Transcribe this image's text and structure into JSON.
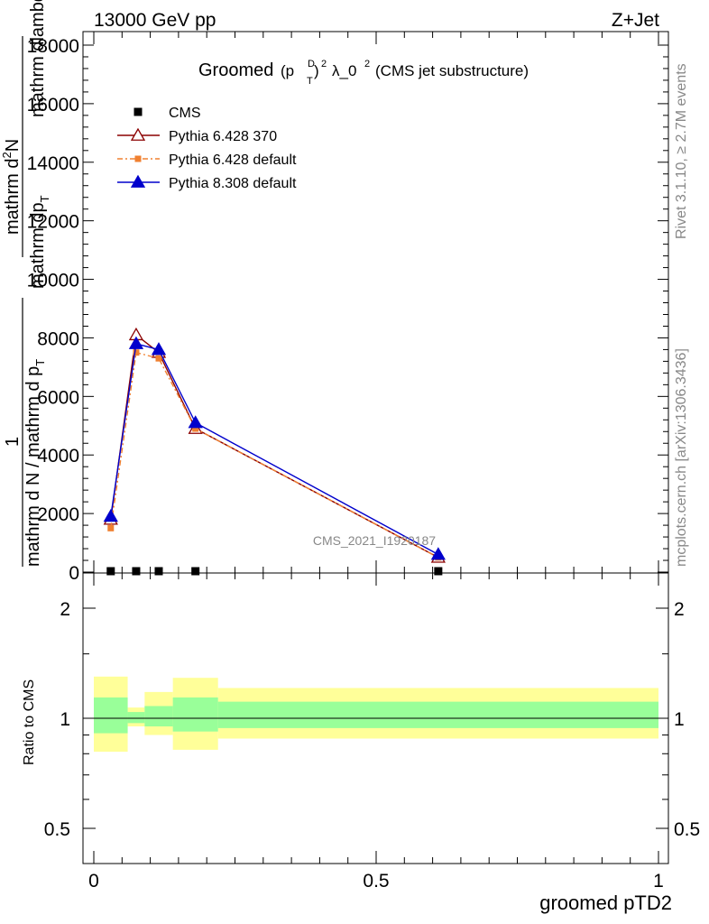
{
  "header": {
    "left": "13000 GeV pp",
    "right": "Z+Jet"
  },
  "side_text": {
    "rivet": "Rivet 3.1.10, ≥ 2.7M events",
    "mcplots": "mcplots.cern.ch [arXiv:1306.3436]"
  },
  "chart_data": [
    {
      "type": "line",
      "title_main": "Groomed",
      "title_rest": "λ_0",
      "title_paren": "(CMS jet substructure)",
      "title_sup": "2",
      "title_p": "(p",
      "title_pD": "D",
      "title_pT": "T",
      "ylabel_lines": [
        "mathrm d²N",
        "mathrm d p_T mathrm d lambda",
        "1",
        "mathrm d N / mathrm d p_T"
      ],
      "ylabel": {
        "top": "mathrm d",
        "top_sup": "2",
        "top_n": "N",
        "lambda": "mathrm dlambda",
        "pt1": "mathrm dp",
        "pt1_sub": "T",
        "one": "1",
        "denom": "mathrm d N / mathrm d p",
        "denom_sub": "T"
      },
      "xlabel": "groomed pTD2",
      "xlim": [
        0,
        1
      ],
      "ylim": [
        0,
        18000
      ],
      "yticks": [
        0,
        2000,
        4000,
        6000,
        8000,
        10000,
        12000,
        14000,
        16000,
        18000
      ],
      "ytick_labels": [
        "0",
        "2000",
        "4000",
        "6000",
        "8000",
        "10000",
        "12000",
        "14000",
        "16000",
        "18000"
      ],
      "watermark": "CMS_2021_I1920187",
      "legend_position": "top-left",
      "series": [
        {
          "name": "CMS",
          "marker": "square",
          "color": "#000000",
          "x": [
            0.03,
            0.075,
            0.115,
            0.18,
            0.61
          ],
          "y": [
            0,
            0,
            0,
            0,
            0
          ]
        },
        {
          "name": "Pythia 6.428 370",
          "marker": "open-triangle",
          "color": "#8b0000",
          "dash": "",
          "x": [
            0.03,
            0.075,
            0.115,
            0.18,
            0.61
          ],
          "y": [
            1800,
            8100,
            7500,
            4900,
            500
          ]
        },
        {
          "name": "Pythia 6.428 default",
          "marker": "filled-square",
          "color": "#f08030",
          "dash": "6,3,2,3",
          "x": [
            0.03,
            0.075,
            0.115,
            0.18,
            0.61
          ],
          "y": [
            1500,
            7500,
            7300,
            4900,
            500
          ]
        },
        {
          "name": "Pythia 8.308 default",
          "marker": "filled-triangle",
          "color": "#0000cc",
          "dash": "",
          "x": [
            0.03,
            0.075,
            0.115,
            0.18,
            0.61
          ],
          "y": [
            1900,
            7800,
            7600,
            5100,
            600
          ]
        }
      ]
    },
    {
      "type": "area",
      "ylabel": "Ratio to CMS",
      "xlabel": "groomed pTD2",
      "xlim": [
        0,
        1
      ],
      "ylim": [
        0.4,
        2.4
      ],
      "log_y": true,
      "yticks": [
        0.5,
        1,
        2
      ],
      "ytick_labels": [
        "0.5",
        "1",
        "2"
      ],
      "xticks": [
        0,
        0.5,
        1
      ],
      "xtick_labels": [
        "0",
        "0.5",
        "1"
      ],
      "bins": [
        {
          "x0": 0.0,
          "x1": 0.06,
          "inner": [
            0.91,
            1.14
          ],
          "outer": [
            0.81,
            1.3
          ]
        },
        {
          "x0": 0.06,
          "x1": 0.09,
          "inner": [
            0.97,
            1.04
          ],
          "outer": [
            0.95,
            1.07
          ]
        },
        {
          "x0": 0.09,
          "x1": 0.14,
          "inner": [
            0.95,
            1.08
          ],
          "outer": [
            0.9,
            1.18
          ]
        },
        {
          "x0": 0.14,
          "x1": 0.22,
          "inner": [
            0.92,
            1.14
          ],
          "outer": [
            0.82,
            1.29
          ]
        },
        {
          "x0": 0.22,
          "x1": 1.0,
          "inner": [
            0.94,
            1.11
          ],
          "outer": [
            0.88,
            1.21
          ]
        }
      ],
      "colors": {
        "inner": "#99ff99",
        "outer": "#ffff99"
      }
    }
  ]
}
